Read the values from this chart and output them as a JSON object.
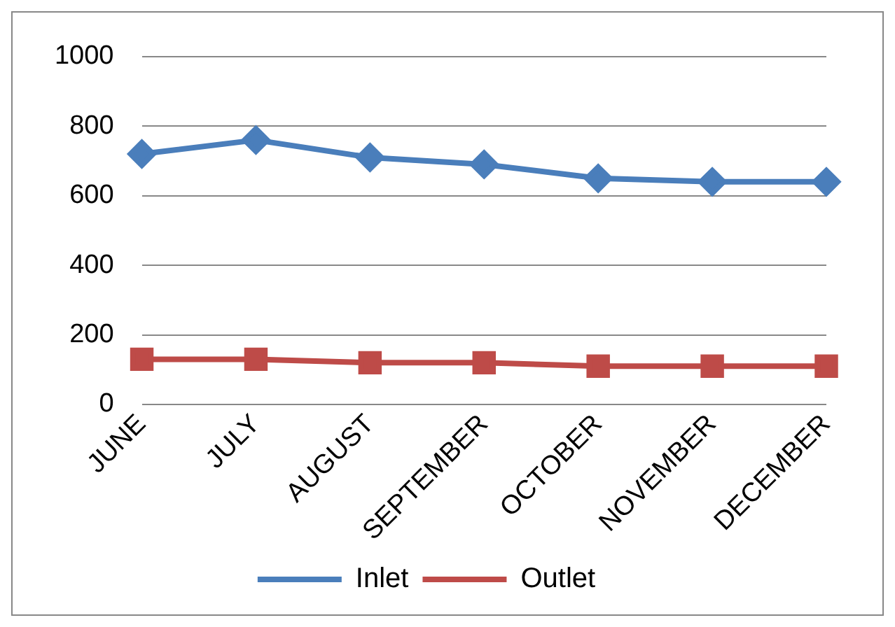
{
  "chart_data": {
    "type": "line",
    "categories": [
      "JUNE",
      "JULY",
      "AUGUST",
      "SEPTEMBER",
      "OCTOBER",
      "NOVEMBER",
      "DECEMBER"
    ],
    "series": [
      {
        "name": "Inlet",
        "color": "#4a7ebb",
        "marker": "diamond",
        "values": [
          720,
          760,
          710,
          690,
          650,
          640,
          640
        ]
      },
      {
        "name": "Outlet",
        "color": "#be4b48",
        "marker": "square",
        "values": [
          130,
          130,
          120,
          120,
          110,
          110,
          110
        ]
      }
    ],
    "ylim": [
      0,
      1000
    ],
    "yticks": [
      0,
      200,
      400,
      600,
      800,
      1000
    ],
    "grid": "y",
    "legend": "bottom"
  }
}
